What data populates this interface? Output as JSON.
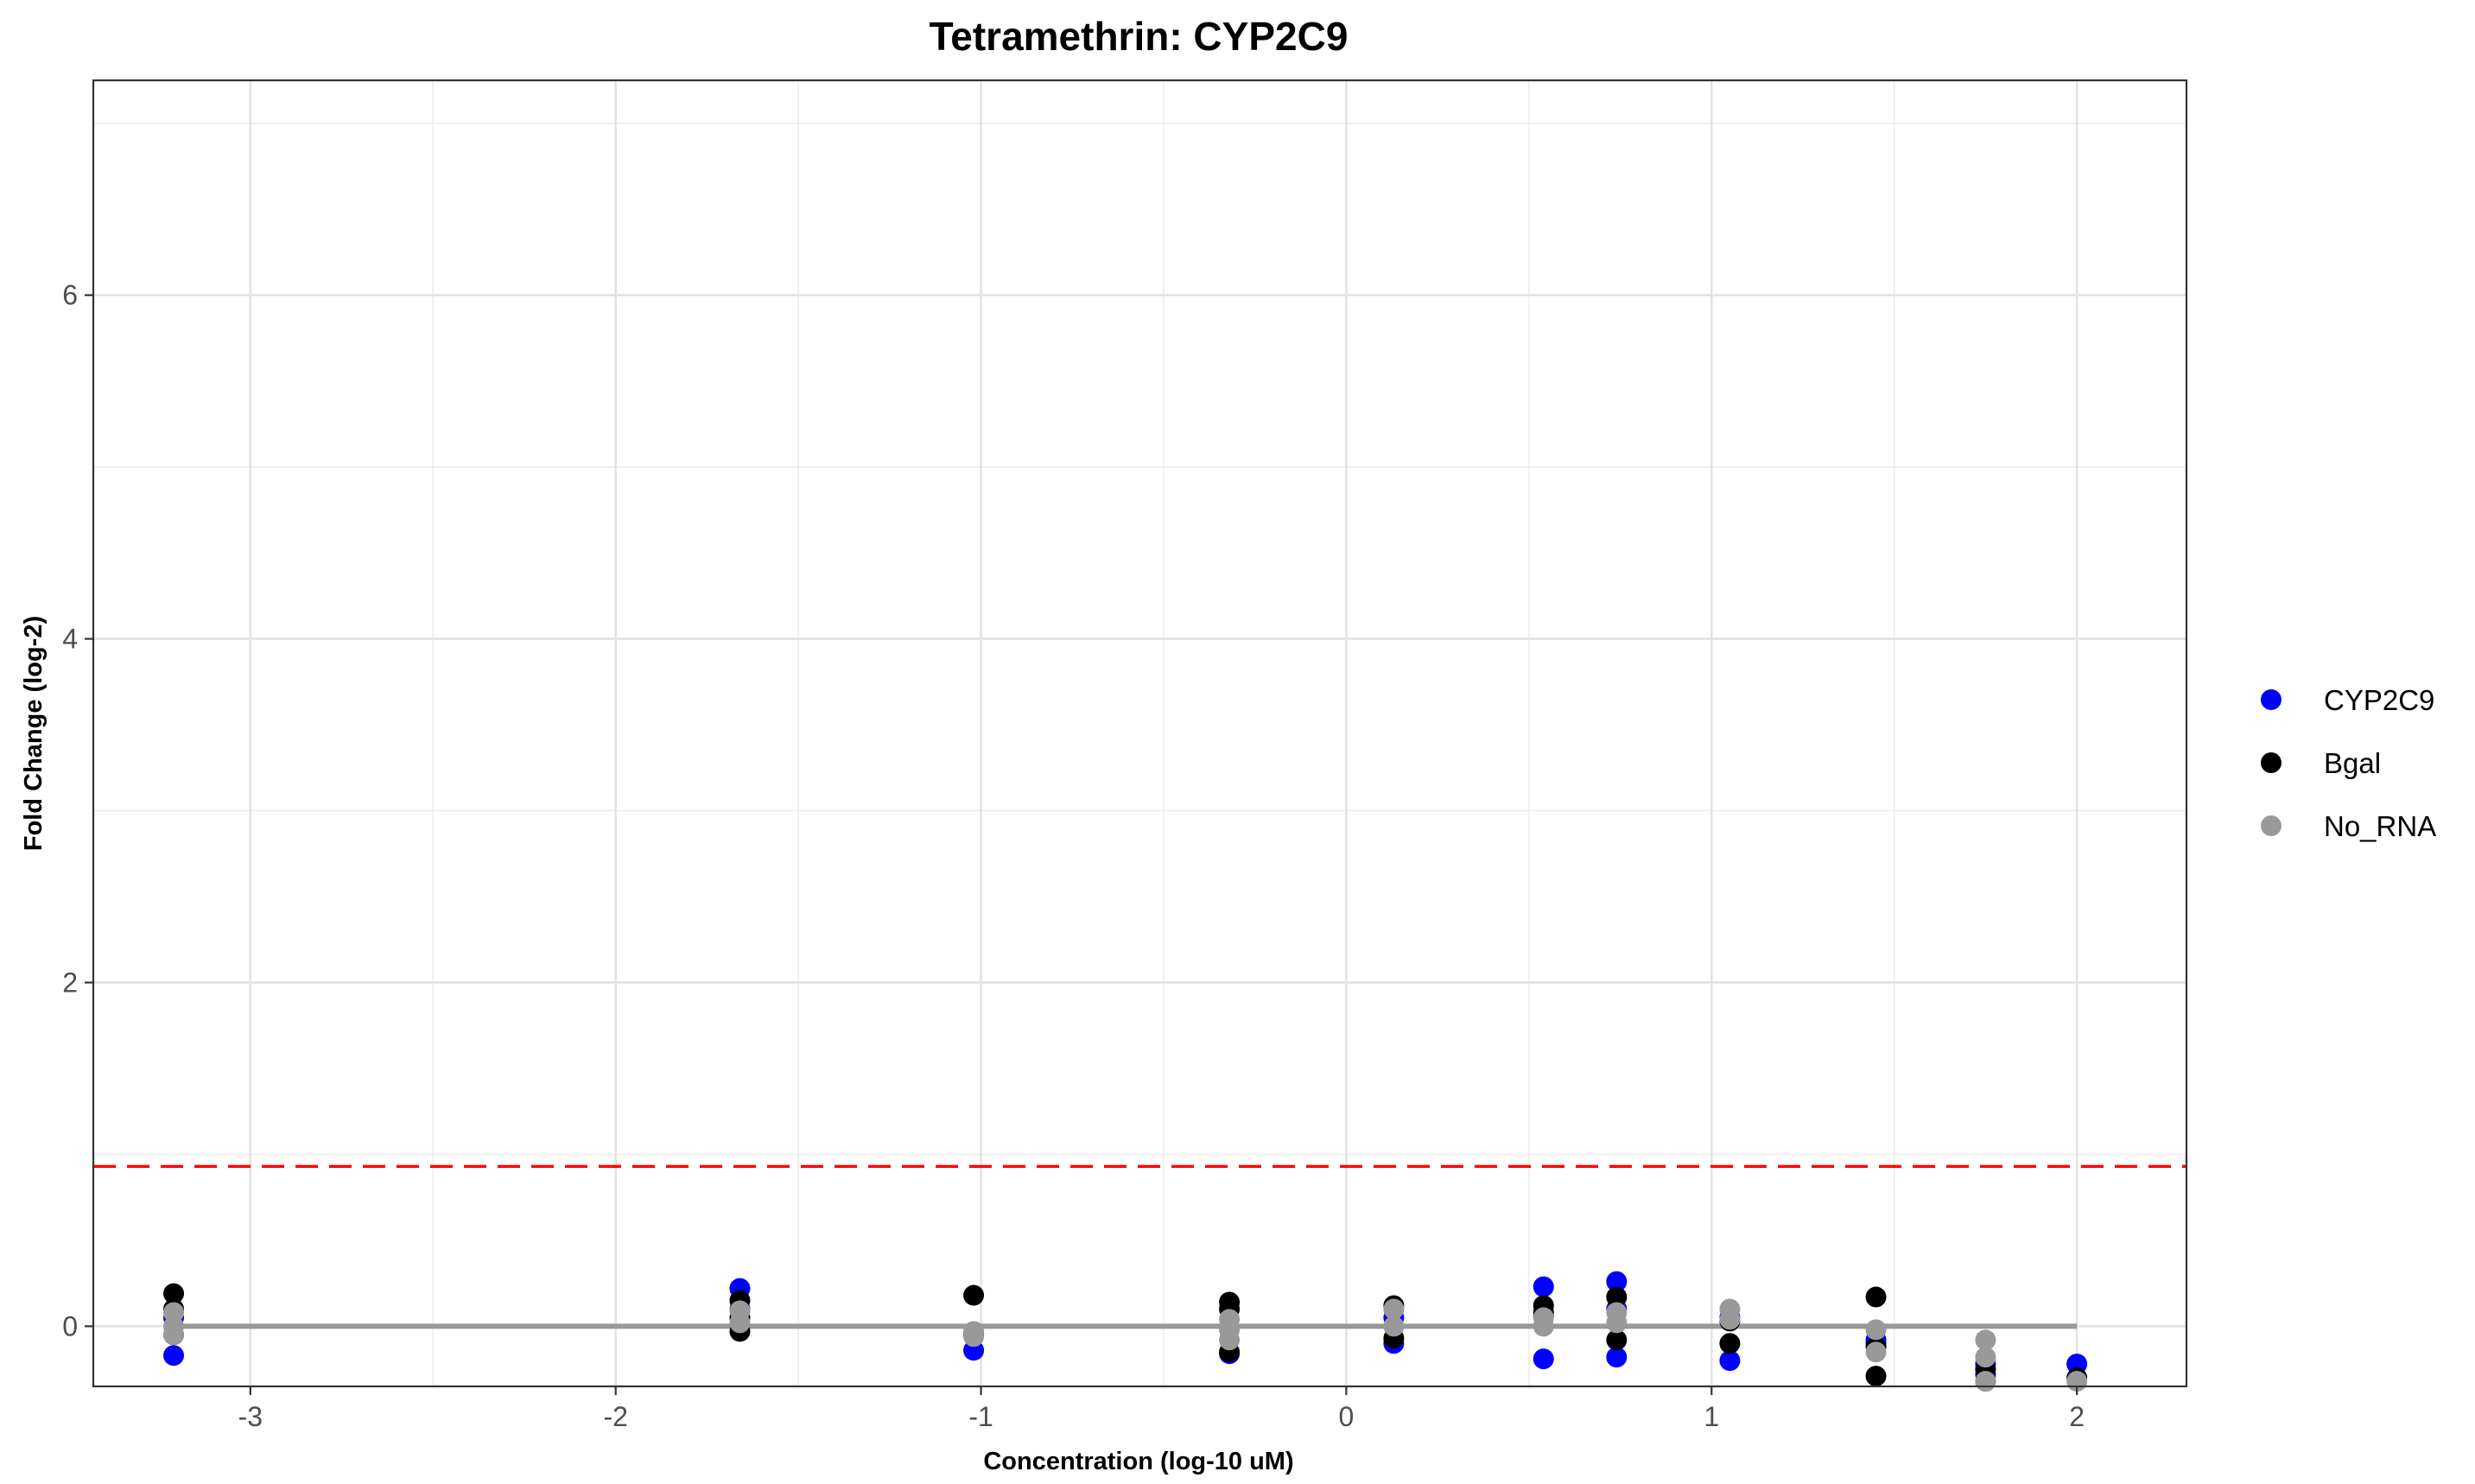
{
  "chart_data": {
    "type": "scatter",
    "title": "Tetramethrin: CYP2C9",
    "xlabel": "Concentration (log-10 uM)",
    "ylabel": "Fold Change (log-2)",
    "xlim": [
      -3.43,
      2.3
    ],
    "ylim": [
      -0.35,
      7.25
    ],
    "x_ticks": [
      -3,
      -2,
      -1,
      0,
      1,
      2
    ],
    "x_tick_labels": [
      "-3",
      "-2",
      "-1",
      "0",
      "1",
      "2"
    ],
    "y_ticks": [
      0,
      2,
      4,
      6
    ],
    "y_tick_labels": [
      "0",
      "2",
      "4",
      "6"
    ],
    "grid": true,
    "legend_position": "right",
    "threshold_line": {
      "y": 0.93,
      "color": "#ff0000",
      "style": "dashed"
    },
    "fit_line": {
      "x_start": -3.21,
      "x_end": 2.0,
      "y": 0.0,
      "color": "#999999"
    },
    "series": [
      {
        "name": "CYP2C9",
        "color": "#0000ff",
        "points": [
          [
            -3.21,
            -0.17
          ],
          [
            -3.21,
            0.05
          ],
          [
            -1.66,
            0.22
          ],
          [
            -1.66,
            0.1
          ],
          [
            -1.02,
            -0.04
          ],
          [
            -1.02,
            -0.14
          ],
          [
            -0.32,
            -0.16
          ],
          [
            0.13,
            -0.1
          ],
          [
            0.13,
            0.05
          ],
          [
            0.54,
            0.23
          ],
          [
            0.54,
            -0.19
          ],
          [
            0.54,
            0.06
          ],
          [
            0.74,
            0.26
          ],
          [
            0.74,
            -0.18
          ],
          [
            0.74,
            0.1
          ],
          [
            1.05,
            -0.2
          ],
          [
            1.05,
            0.05
          ],
          [
            1.45,
            -0.1
          ],
          [
            1.45,
            -0.08
          ],
          [
            1.75,
            -0.28
          ],
          [
            1.75,
            -0.22
          ],
          [
            2.0,
            -0.22
          ]
        ]
      },
      {
        "name": "Bgal",
        "color": "#000000",
        "points": [
          [
            -3.21,
            0.19
          ],
          [
            -3.21,
            0.1
          ],
          [
            -3.21,
            -0.05
          ],
          [
            -1.66,
            0.15
          ],
          [
            -1.66,
            -0.03
          ],
          [
            -1.66,
            0.05
          ],
          [
            -1.02,
            0.18
          ],
          [
            -1.02,
            -0.05
          ],
          [
            -0.32,
            0.14
          ],
          [
            -0.32,
            0.1
          ],
          [
            -0.32,
            -0.15
          ],
          [
            0.13,
            0.12
          ],
          [
            0.13,
            -0.07
          ],
          [
            0.54,
            0.12
          ],
          [
            0.54,
            0.08
          ],
          [
            0.74,
            0.17
          ],
          [
            0.74,
            -0.08
          ],
          [
            1.05,
            -0.1
          ],
          [
            1.05,
            0.03
          ],
          [
            1.45,
            0.17
          ],
          [
            1.45,
            -0.29
          ],
          [
            1.45,
            -0.12
          ],
          [
            1.75,
            -0.25
          ],
          [
            1.75,
            -0.32
          ],
          [
            2.0,
            -0.3
          ]
        ]
      },
      {
        "name": "No_RNA",
        "color": "#999999",
        "points": [
          [
            -3.21,
            0.08
          ],
          [
            -3.21,
            0.0
          ],
          [
            -3.21,
            -0.05
          ],
          [
            -1.66,
            0.09
          ],
          [
            -1.66,
            0.02
          ],
          [
            -1.02,
            -0.03
          ],
          [
            -1.02,
            -0.06
          ],
          [
            -0.32,
            0.04
          ],
          [
            -0.32,
            -0.02
          ],
          [
            -0.32,
            -0.08
          ],
          [
            0.13,
            0.1
          ],
          [
            0.13,
            0.0
          ],
          [
            0.54,
            0.05
          ],
          [
            0.54,
            0.0
          ],
          [
            0.74,
            0.08
          ],
          [
            0.74,
            0.02
          ],
          [
            1.05,
            0.1
          ],
          [
            1.05,
            0.04
          ],
          [
            1.45,
            -0.02
          ],
          [
            1.45,
            -0.15
          ],
          [
            1.75,
            -0.08
          ],
          [
            1.75,
            -0.18
          ],
          [
            1.75,
            -0.32
          ],
          [
            2.0,
            -0.32
          ]
        ]
      }
    ]
  }
}
